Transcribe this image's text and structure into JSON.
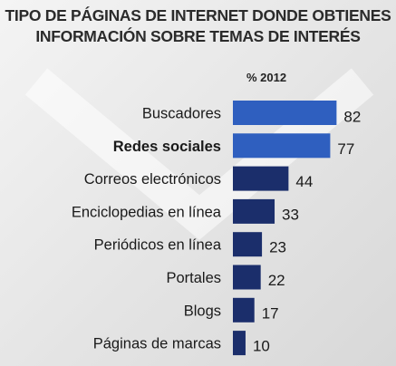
{
  "chart_data": {
    "type": "bar",
    "orientation": "horizontal",
    "title": [
      "TIPO DE PÁGINAS DE INTERNET DONDE OBTIENES",
      "INFORMACIÓN SOBRE TEMAS DE INTERÉS"
    ],
    "series_label": "% 2012",
    "categories": [
      "Buscadores",
      "Redes sociales",
      "Correos electrónicos",
      "Enciclopedias en línea",
      "Periódicos en línea",
      "Portales",
      "Blogs",
      "Páginas de marcas"
    ],
    "values": [
      82,
      77,
      44,
      33,
      23,
      22,
      17,
      10
    ],
    "bold_category": "Redes sociales",
    "highlight_categories": [
      "Buscadores",
      "Redes sociales"
    ],
    "colors": {
      "highlight": "#2f5fbf",
      "default": "#1b2e6b"
    },
    "xlim": [
      0,
      100
    ],
    "grid": false,
    "legend": "none"
  }
}
